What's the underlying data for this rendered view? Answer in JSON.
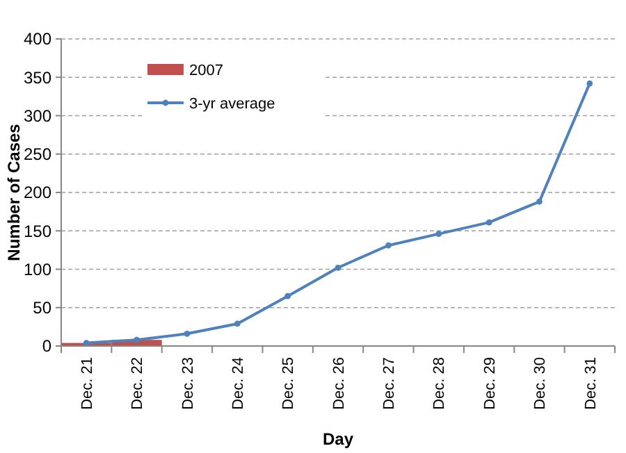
{
  "chart_data": {
    "type": "bar",
    "xlabel": "Day",
    "ylabel": "Number of Cases",
    "categories": [
      "Dec. 21",
      "Dec. 22",
      "Dec. 23",
      "Dec. 24",
      "Dec. 25",
      "Dec. 26",
      "Dec. 27",
      "Dec. 28",
      "Dec. 29",
      "Dec. 30",
      "Dec. 31"
    ],
    "series": [
      {
        "name": "2007",
        "color": "#c0504d",
        "values": [
          4,
          8,
          null,
          null,
          null,
          null,
          null,
          null,
          null,
          null,
          null
        ]
      },
      {
        "name": "3-yr average",
        "type": "line",
        "color": "#4f81bd",
        "marker": "circle",
        "values": [
          4,
          8,
          16,
          29,
          65,
          102,
          131,
          146,
          161,
          188,
          342
        ]
      }
    ],
    "ylim": [
      0,
      400
    ],
    "yticks": [
      0,
      50,
      100,
      150,
      200,
      250,
      300,
      350,
      400
    ],
    "grid": "y",
    "legend": "top left"
  }
}
